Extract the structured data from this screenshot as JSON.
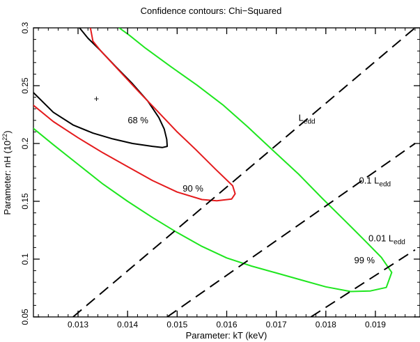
{
  "chart_data": {
    "type": "line",
    "title": "Confidence contours: Chi−Squared",
    "xlabel": "Parameter: kT (keV)",
    "ylabel_main": "Parameter: nH (10",
    "ylabel_sup": "22",
    "ylabel_tail": ")",
    "xlim": [
      0.0121,
      0.0199
    ],
    "ylim": [
      0.05,
      0.3
    ],
    "xticks": [
      "0.013",
      "0.014",
      "0.015",
      "0.016",
      "0.017",
      "0.018",
      "0.019"
    ],
    "xtick_values": [
      0.013,
      0.014,
      0.015,
      0.016,
      0.017,
      0.018,
      0.019
    ],
    "yticks": [
      "0.05",
      "0.1",
      "0.15",
      "0.2",
      "0.25",
      "0.3"
    ],
    "ytick_values": [
      0.05,
      0.1,
      0.15,
      0.2,
      0.25,
      0.3
    ],
    "best_fit": {
      "marker": "+",
      "x": 0.01337,
      "y": 0.2385
    },
    "contours": [
      {
        "label": "68 %",
        "color": "#000000",
        "label_at": [
          0.01421,
          0.2175
        ],
        "points": [
          [
            0.0121,
            0.244
          ],
          [
            0.0125,
            0.227
          ],
          [
            0.0129,
            0.216
          ],
          [
            0.0133,
            0.209
          ],
          [
            0.0137,
            0.204
          ],
          [
            0.0141,
            0.2
          ],
          [
            0.0145,
            0.1975
          ],
          [
            0.0147,
            0.1965
          ],
          [
            0.0148,
            0.1975
          ],
          [
            0.01479,
            0.2035
          ],
          [
            0.01474,
            0.2125
          ],
          [
            0.01463,
            0.2225
          ],
          [
            0.01441,
            0.2365
          ],
          [
            0.01408,
            0.2525
          ],
          [
            0.01376,
            0.2665
          ],
          [
            0.01345,
            0.2805
          ],
          [
            0.0132,
            0.291
          ],
          [
            0.01303,
            0.3
          ]
        ]
      },
      {
        "label": "90 %",
        "color": "#e41a1c",
        "label_at": [
          0.01532,
          0.1585
        ],
        "points": [
          [
            0.0121,
            0.233
          ],
          [
            0.0125,
            0.219
          ],
          [
            0.013,
            0.205
          ],
          [
            0.0135,
            0.192
          ],
          [
            0.014,
            0.18
          ],
          [
            0.0145,
            0.168
          ],
          [
            0.015,
            0.158
          ],
          [
            0.0155,
            0.1515
          ],
          [
            0.0158,
            0.1505
          ],
          [
            0.0161,
            0.152
          ],
          [
            0.01617,
            0.1565
          ],
          [
            0.01612,
            0.1635
          ],
          [
            0.01578,
            0.1775
          ],
          [
            0.01538,
            0.1945
          ],
          [
            0.01499,
            0.2105
          ],
          [
            0.01459,
            0.2285
          ],
          [
            0.01423,
            0.2445
          ],
          [
            0.01384,
            0.2625
          ],
          [
            0.01345,
            0.2805
          ],
          [
            0.0133,
            0.2885
          ],
          [
            0.01325,
            0.3
          ]
        ]
      },
      {
        "label": "99 %",
        "color": "#1ee61e",
        "label_at": [
          0.01878,
          0.0965
        ],
        "points": [
          [
            0.0121,
            0.213
          ],
          [
            0.0125,
            0.199
          ],
          [
            0.013,
            0.182
          ],
          [
            0.0135,
            0.165
          ],
          [
            0.014,
            0.15
          ],
          [
            0.0145,
            0.136
          ],
          [
            0.015,
            0.123
          ],
          [
            0.0155,
            0.111
          ],
          [
            0.016,
            0.101
          ],
          [
            0.0165,
            0.094
          ],
          [
            0.017,
            0.088
          ],
          [
            0.0175,
            0.082
          ],
          [
            0.018,
            0.076
          ],
          [
            0.0185,
            0.072
          ],
          [
            0.0189,
            0.0725
          ],
          [
            0.01922,
            0.0755
          ],
          [
            0.01933,
            0.0885
          ],
          [
            0.01912,
            0.1015
          ],
          [
            0.0188,
            0.1155
          ],
          [
            0.01838,
            0.1335
          ],
          [
            0.01793,
            0.1525
          ],
          [
            0.01745,
            0.1735
          ],
          [
            0.01692,
            0.1945
          ],
          [
            0.01642,
            0.2145
          ],
          [
            0.01592,
            0.2335
          ],
          [
            0.0154,
            0.2505
          ],
          [
            0.01487,
            0.2665
          ],
          [
            0.01436,
            0.2825
          ],
          [
            0.01404,
            0.2935
          ],
          [
            0.01383,
            0.3
          ]
        ]
      }
    ],
    "limits": [
      {
        "label": "L",
        "sub": "edd",
        "label_at": [
          0.01745,
          0.2195
        ],
        "from": [
          0.0129,
          0.05
        ],
        "to": [
          0.0198,
          0.3
        ]
      },
      {
        "label": "0.1 L",
        "sub": "edd",
        "label_at": [
          0.01867,
          0.1655
        ],
        "from": [
          0.0148,
          0.05
        ],
        "to": [
          0.0198,
          0.2
        ]
      },
      {
        "label": "0.01 L",
        "sub": "edd",
        "label_at": [
          0.01886,
          0.1155
        ],
        "from": [
          0.0177,
          0.05
        ],
        "to": [
          0.0198,
          0.108
        ]
      }
    ]
  }
}
